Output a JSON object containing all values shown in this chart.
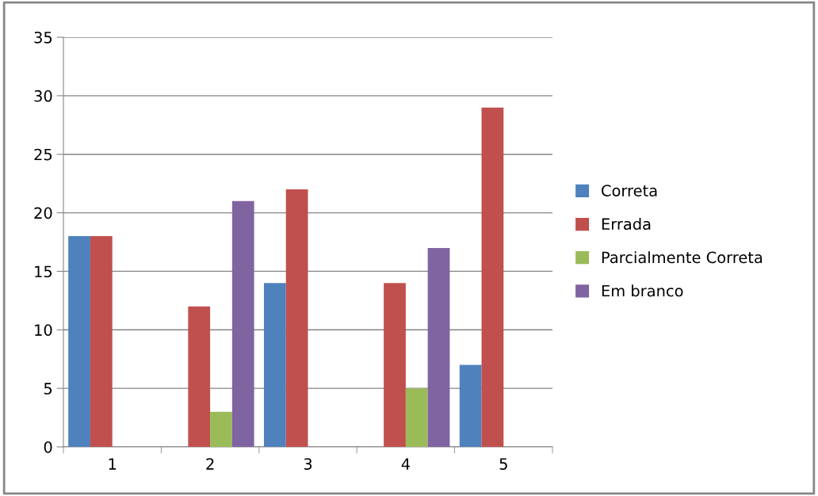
{
  "chart_data": {
    "type": "bar",
    "categories": [
      "1",
      "2",
      "3",
      "4",
      "5"
    ],
    "series": [
      {
        "name": "Correta",
        "color": "#4f81bd",
        "values": [
          18,
          0,
          14,
          0,
          7
        ]
      },
      {
        "name": "Errada",
        "color": "#c0504d",
        "values": [
          18,
          12,
          22,
          14,
          29
        ]
      },
      {
        "name": "Parcialmente Correta",
        "color": "#9bbb59",
        "values": [
          0,
          3,
          0,
          5,
          0
        ]
      },
      {
        "name": "Em branco",
        "color": "#8064a2",
        "values": [
          0,
          21,
          0,
          17,
          0
        ]
      }
    ],
    "ylim": [
      0,
      35
    ],
    "yticks": [
      0,
      5,
      10,
      15,
      20,
      25,
      30,
      35
    ],
    "grid": "y",
    "legend": "right"
  }
}
